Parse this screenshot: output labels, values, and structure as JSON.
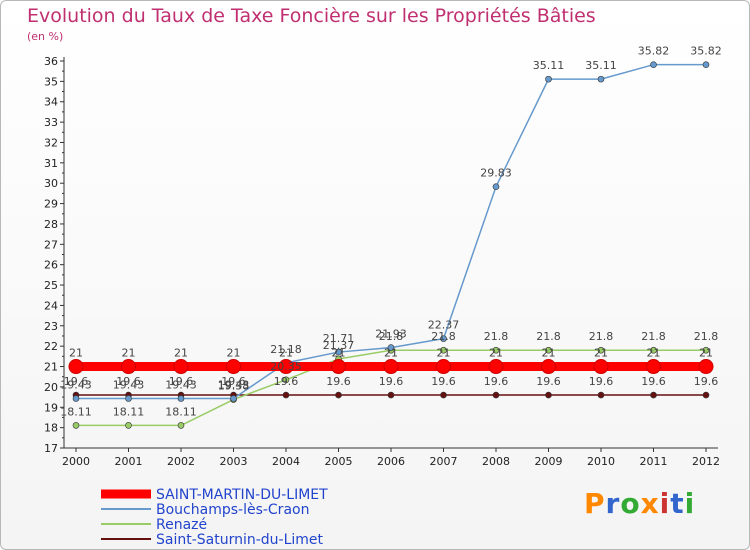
{
  "chart_data": {
    "type": "line",
    "title": "Evolution du Taux de Taxe Foncière sur les Propriétés Bâties",
    "ylabel": "(en %)",
    "xlabel": "",
    "ylim": [
      17,
      36
    ],
    "yticks": [
      17,
      18,
      19,
      20,
      21,
      22,
      23,
      24,
      25,
      26,
      27,
      28,
      29,
      30,
      31,
      32,
      33,
      34,
      35,
      36
    ],
    "categories": [
      "2000",
      "2001",
      "2002",
      "2003",
      "2004",
      "2005",
      "2006",
      "2007",
      "2008",
      "2009",
      "2010",
      "2011",
      "2012"
    ],
    "grid": false,
    "legend_position": "bottom-left",
    "series": [
      {
        "name": "SAINT-MARTIN-DU-LIMET",
        "color": "#ff0000",
        "values": [
          21,
          21,
          21,
          21,
          21,
          21,
          21,
          21,
          21,
          21,
          21,
          21,
          21
        ],
        "labels": [
          "21",
          "21",
          "21",
          "21",
          "21",
          "21",
          "21",
          "21",
          "21",
          "21",
          "21",
          "21",
          "21"
        ]
      },
      {
        "name": "Bouchamps-lès-Craon",
        "color": "#6699cc",
        "values": [
          19.43,
          19.43,
          19.43,
          19.43,
          21.18,
          21.71,
          21.93,
          22.37,
          29.83,
          35.11,
          35.11,
          35.82,
          35.82
        ],
        "labels": [
          "19.43",
          "19.43",
          "19.43",
          "19.43",
          "21.18",
          "21.71",
          "21.93",
          "22.37",
          "29.83",
          "35.11",
          "35.11",
          "35.82",
          "35.82"
        ]
      },
      {
        "name": "Renazé",
        "color": "#99cc66",
        "values": [
          18.11,
          18.11,
          18.11,
          19.38,
          20.35,
          21.37,
          21.8,
          21.8,
          21.8,
          21.8,
          21.8,
          21.8,
          21.8
        ],
        "labels": [
          "18.11",
          "18.11",
          "18.11",
          "19.38",
          "20.35",
          "21.37",
          "21.8",
          "21.8",
          "21.8",
          "21.8",
          "21.8",
          "21.8",
          "21.8"
        ]
      },
      {
        "name": "Saint-Saturnin-du-Limet",
        "color": "#661111",
        "values": [
          19.6,
          19.6,
          19.6,
          19.6,
          19.6,
          19.6,
          19.6,
          19.6,
          19.6,
          19.6,
          19.6,
          19.6,
          19.6
        ],
        "labels": [
          "19.6",
          "19.6",
          "19.6",
          "19.6",
          "19.6",
          "19.6",
          "19.6",
          "19.6",
          "19.6",
          "19.6",
          "19.6",
          "19.6",
          "19.6"
        ]
      }
    ]
  },
  "logo": {
    "letters": [
      "P",
      "r",
      "o",
      "x",
      "i",
      "t",
      "i"
    ],
    "colors": [
      "#ff8800",
      "#3366cc",
      "#33aa33",
      "#ff8800",
      "#cc3333",
      "#3366cc",
      "#33aa33"
    ]
  }
}
